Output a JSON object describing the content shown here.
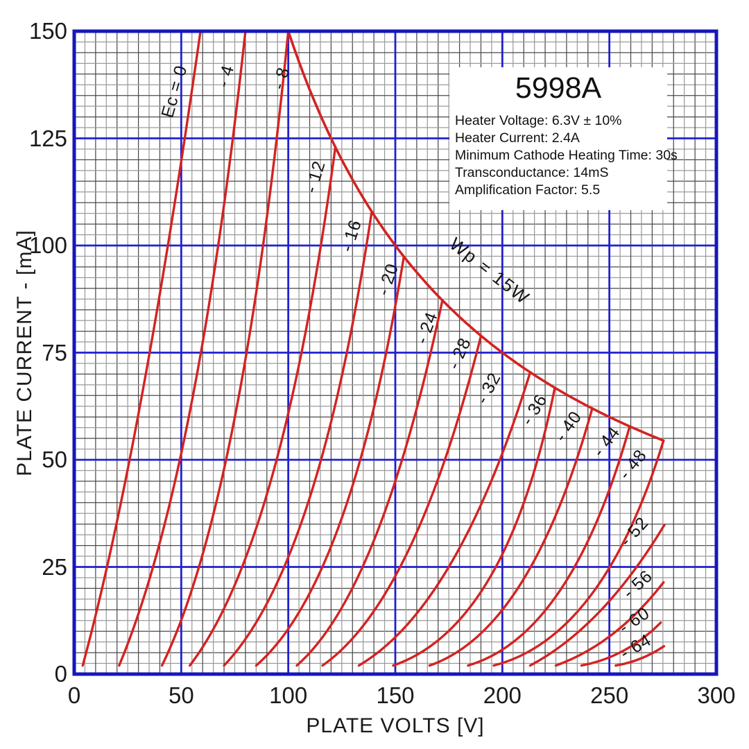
{
  "info_box": {
    "title": "5998A",
    "lines": [
      "Heater Voltage: 6.3V ± 10%",
      "Heater Current: 2.4A",
      "Minimum Cathode Heating Time: 30s",
      "Transconductance: 14mS",
      "Amplification Factor: 5.5"
    ]
  },
  "axes": {
    "x": {
      "label": "PLATE VOLTS [V]",
      "min": 0,
      "max": 300,
      "major": 50,
      "minor": 5,
      "ticks": [
        "0",
        "50",
        "100",
        "150",
        "200",
        "250",
        "300"
      ]
    },
    "y": {
      "label": "PLATE CURRENT - [mA]",
      "min": 0,
      "max": 150,
      "major": 25,
      "minor": 2.5,
      "ticks": [
        "0",
        "25",
        "50",
        "75",
        "100",
        "125",
        "150"
      ]
    }
  },
  "colors": {
    "curve": "#d42222",
    "major_grid": "#2121cc",
    "frame": "#1717bb",
    "minor_grid_light": "#9a9a9a",
    "minor_grid_dark": "#4a4a4a",
    "text": "#151515"
  },
  "chart_data": {
    "type": "line",
    "title": "5998A",
    "xlabel": "PLATE VOLTS [V]",
    "ylabel": "PLATE CURRENT - [mA]",
    "xlim": [
      0,
      300
    ],
    "ylim": [
      0,
      150
    ],
    "grid": {
      "x_minor": 5,
      "x_major": 50,
      "y_minor": 2.5,
      "y_major": 25
    },
    "legend_position": "none",
    "power_curve": {
      "label": "Wp = 15W",
      "watts": 15,
      "v_start": 100,
      "v_end": 275.3,
      "label_pos": [
        194,
        94
      ],
      "label_rot": 38
    },
    "series": [
      {
        "label": "Ec = 0",
        "ec": 0,
        "start": [
          4,
          2
        ],
        "control": [
          31,
          52
        ],
        "end": [
          59,
          150
        ],
        "label_pos": [
          47,
          136
        ],
        "label_rot": -74
      },
      {
        "label": "- 4",
        "ec": -4,
        "start": [
          21,
          2
        ],
        "control": [
          57,
          45
        ],
        "end": [
          80,
          150
        ],
        "label_pos": [
          71,
          139.5
        ],
        "label_rot": -74
      },
      {
        "label": "- 8",
        "ec": -8,
        "start": [
          41,
          2
        ],
        "control": [
          78,
          40
        ],
        "end": [
          100,
          150
        ],
        "label_pos": [
          97,
          139
        ],
        "label_rot": -74
      },
      {
        "label": "- 12",
        "ec": -12,
        "start": [
          54,
          2
        ],
        "control": [
          97,
          30
        ],
        "end": [
          122,
          123
        ],
        "label_pos": [
          112.7,
          116
        ],
        "label_rot": -73
      },
      {
        "label": "- 16",
        "ec": -16,
        "start": [
          70,
          2
        ],
        "control": [
          114,
          25
        ],
        "end": [
          139,
          107.9
        ],
        "label_pos": [
          129.6,
          102.3
        ],
        "label_rot": -72
      },
      {
        "label": "- 20",
        "ec": -20,
        "start": [
          85,
          2
        ],
        "control": [
          129,
          21
        ],
        "end": [
          154,
          97.4
        ],
        "label_pos": [
          146.7,
          92.1
        ],
        "label_rot": -71
      },
      {
        "label": "- 24",
        "ec": -24,
        "start": [
          104,
          2
        ],
        "control": [
          143,
          19
        ],
        "end": [
          172,
          87.2
        ],
        "label_pos": [
          165,
          80.7
        ],
        "label_rot": -69
      },
      {
        "label": "- 28",
        "ec": -28,
        "start": [
          116,
          2
        ],
        "control": [
          159,
          17
        ],
        "end": [
          190,
          78.9
        ],
        "label_pos": [
          180,
          74.8
        ],
        "label_rot": -66
      },
      {
        "label": "- 32",
        "ec": -32,
        "start": [
          133,
          2
        ],
        "control": [
          179,
          15.5
        ],
        "end": [
          213,
          70.4
        ],
        "label_pos": [
          193.7,
          66.7
        ],
        "label_rot": -62
      },
      {
        "label": "- 36",
        "ec": -36,
        "start": [
          149,
          2
        ],
        "control": [
          202,
          11
        ],
        "end": [
          224.5,
          66.8
        ],
        "label_pos": [
          215,
          61.6
        ],
        "label_rot": -58
      },
      {
        "label": "- 40",
        "ec": -40,
        "start": [
          166,
          2
        ],
        "control": [
          213,
          10
        ],
        "end": [
          242,
          62
        ],
        "label_pos": [
          231,
          57.8
        ],
        "label_rot": -55
      },
      {
        "label": "- 44",
        "ec": -44,
        "start": [
          184,
          2
        ],
        "control": [
          232,
          9
        ],
        "end": [
          259.5,
          57.8
        ],
        "label_pos": [
          248.8,
          54.2
        ],
        "label_rot": -53
      },
      {
        "label": "- 48",
        "ec": -48,
        "start": [
          196,
          2
        ],
        "control": [
          247,
          8.5
        ],
        "end": [
          275.3,
          54.5
        ],
        "label_pos": [
          261,
          48.9
        ],
        "label_rot": -51
      },
      {
        "label": "- 52",
        "ec": -52,
        "start": [
          213,
          2
        ],
        "control": [
          247,
          11
        ],
        "end": [
          275.7,
          34.8
        ],
        "label_pos": [
          261.7,
          33.2
        ],
        "label_rot": -48
      },
      {
        "label": "- 56",
        "ec": -56,
        "start": [
          225,
          2
        ],
        "control": [
          253,
          7
        ],
        "end": [
          275.3,
          21.4
        ],
        "label_pos": [
          263.4,
          20.9
        ],
        "label_rot": -42
      },
      {
        "label": "- 60",
        "ec": -60,
        "start": [
          237,
          2
        ],
        "control": [
          258,
          4
        ],
        "end": [
          274,
          12
        ],
        "label_pos": [
          261.7,
          12.5
        ],
        "label_rot": -34
      },
      {
        "label": "- 64",
        "ec": -64,
        "start": [
          253,
          2
        ],
        "control": [
          265,
          3
        ],
        "end": [
          275.5,
          6.5
        ],
        "label_pos": [
          262.4,
          6.3
        ],
        "label_rot": -30
      }
    ]
  }
}
